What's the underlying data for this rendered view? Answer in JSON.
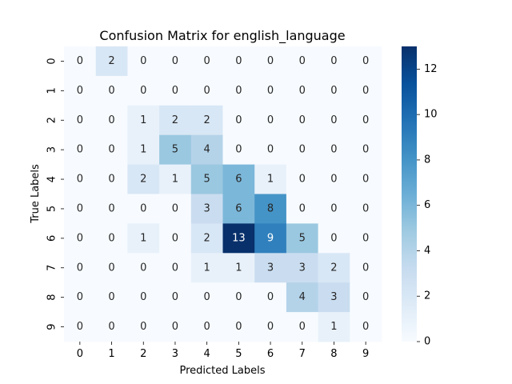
{
  "chart_data": {
    "type": "heatmap",
    "title": "Confusion Matrix for english_language",
    "xlabel": "Predicted Labels",
    "ylabel": "True Labels",
    "x_categories": [
      "0",
      "1",
      "2",
      "3",
      "4",
      "5",
      "6",
      "7",
      "8",
      "9"
    ],
    "y_categories": [
      "0",
      "1",
      "2",
      "3",
      "4",
      "5",
      "6",
      "7",
      "8",
      "9"
    ],
    "values": [
      [
        0,
        2,
        0,
        0,
        0,
        0,
        0,
        0,
        0,
        0
      ],
      [
        0,
        0,
        0,
        0,
        0,
        0,
        0,
        0,
        0,
        0
      ],
      [
        0,
        0,
        1,
        2,
        2,
        0,
        0,
        0,
        0,
        0
      ],
      [
        0,
        0,
        1,
        5,
        4,
        0,
        0,
        0,
        0,
        0
      ],
      [
        0,
        0,
        2,
        1,
        5,
        6,
        1,
        0,
        0,
        0
      ],
      [
        0,
        0,
        0,
        0,
        3,
        6,
        8,
        0,
        0,
        0
      ],
      [
        0,
        0,
        1,
        0,
        2,
        13,
        9,
        5,
        0,
        0
      ],
      [
        0,
        0,
        0,
        0,
        1,
        1,
        3,
        3,
        2,
        0
      ],
      [
        0,
        0,
        0,
        0,
        0,
        0,
        0,
        4,
        3,
        0
      ],
      [
        0,
        0,
        0,
        0,
        0,
        0,
        0,
        0,
        1,
        0
      ]
    ],
    "colormap": "Blues",
    "colorbar_range": [
      0,
      13
    ],
    "colorbar_ticks": [
      0,
      2,
      4,
      6,
      8,
      10,
      12
    ],
    "annotated": true
  }
}
